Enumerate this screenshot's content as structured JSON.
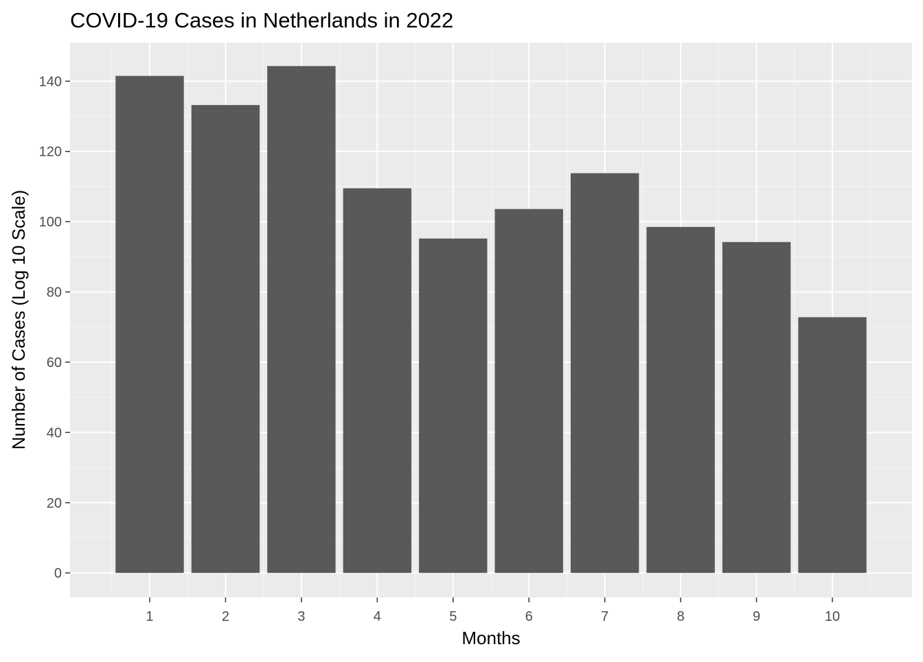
{
  "chart_data": {
    "type": "bar",
    "title": "COVID-19 Cases in Netherlands in 2022",
    "xlabel": "Months",
    "ylabel": "Number of Cases (Log 10 Scale)",
    "categories": [
      "1",
      "2",
      "3",
      "4",
      "5",
      "6",
      "7",
      "8",
      "9",
      "10"
    ],
    "values": [
      141.5,
      133.2,
      144.3,
      109.5,
      95.2,
      103.6,
      113.8,
      98.5,
      94.2,
      72.8
    ],
    "ylim": [
      -7,
      151
    ],
    "y_ticks": [
      0,
      20,
      40,
      60,
      80,
      100,
      120,
      140
    ],
    "y_tick_labels": [
      "0",
      "20",
      "40",
      "60",
      "80",
      "100",
      "120",
      "140"
    ],
    "grid": true,
    "legend": "none",
    "colors": {
      "bar": "#595959",
      "panel": "#ebebeb",
      "grid_major": "#ffffff",
      "grid_minor": "#f5f5f5",
      "tick": "#333333"
    }
  }
}
